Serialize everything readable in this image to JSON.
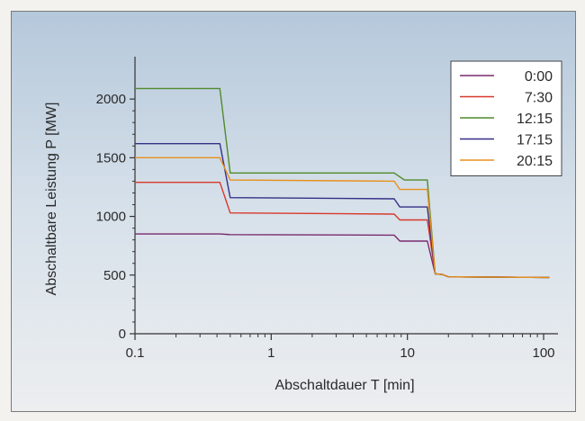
{
  "chart_data": {
    "type": "line",
    "title": "",
    "xlabel": "Abschaltdauer T [min]",
    "ylabel": "Abschaltbare Leistung P [MW]",
    "xscale": "log",
    "xlim": [
      0.1,
      120
    ],
    "ylim": [
      0,
      2300
    ],
    "xticks": [
      0.1,
      1,
      10,
      100
    ],
    "xtick_labels": [
      "0.1",
      "1",
      "10",
      "100"
    ],
    "yticks": [
      0,
      500,
      1000,
      1500,
      2000
    ],
    "ytick_labels": [
      "0",
      "500",
      "1000",
      "1500",
      "2000"
    ],
    "grid": false,
    "legend_position": "top-right",
    "series": [
      {
        "name": "0:00",
        "color": "#7a2a6e",
        "x": [
          0.1,
          0.42,
          0.5,
          8,
          8.8,
          14,
          16,
          18,
          20,
          110
        ],
        "y": [
          850,
          850,
          845,
          840,
          790,
          790,
          510,
          505,
          485,
          480
        ]
      },
      {
        "name": "7:30",
        "color": "#d8382a",
        "x": [
          0.1,
          0.42,
          0.5,
          8,
          8.8,
          14,
          16,
          18,
          20,
          110
        ],
        "y": [
          1290,
          1290,
          1030,
          1020,
          970,
          970,
          510,
          505,
          485,
          480
        ]
      },
      {
        "name": "12:15",
        "color": "#4f8a2c",
        "x": [
          0.1,
          0.42,
          0.5,
          8,
          9.5,
          14,
          16,
          18,
          20,
          110
        ],
        "y": [
          2090,
          2090,
          1370,
          1370,
          1310,
          1310,
          510,
          505,
          485,
          480
        ]
      },
      {
        "name": "17:15",
        "color": "#352f86",
        "x": [
          0.1,
          0.42,
          0.5,
          8,
          8.8,
          14,
          16,
          18,
          20,
          110
        ],
        "y": [
          1620,
          1620,
          1160,
          1150,
          1080,
          1080,
          510,
          505,
          485,
          480
        ]
      },
      {
        "name": "20:15",
        "color": "#e8901c",
        "x": [
          0.1,
          0.42,
          0.5,
          8,
          8.8,
          14,
          16,
          18,
          20,
          110
        ],
        "y": [
          1500,
          1500,
          1310,
          1300,
          1230,
          1230,
          510,
          505,
          485,
          480
        ]
      }
    ]
  }
}
